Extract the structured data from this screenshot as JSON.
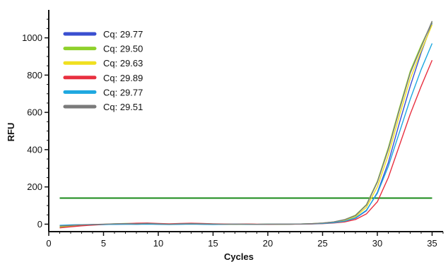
{
  "chart_data": {
    "type": "line",
    "xlabel": "Cycles",
    "ylabel": "RFU",
    "xlim": [
      0,
      36
    ],
    "ylim": [
      -40,
      1150
    ],
    "x_ticks": [
      0,
      5,
      10,
      15,
      20,
      25,
      30,
      35
    ],
    "y_ticks": [
      0,
      200,
      400,
      600,
      800,
      1000
    ],
    "grid": false,
    "legend_position": "top-left",
    "threshold": {
      "value": 140,
      "color": "#1a8a1a",
      "x_range": [
        1,
        35
      ]
    },
    "series": [
      {
        "name": "Cq: 29.77",
        "color": "#3a4fd0",
        "x": [
          1,
          2,
          3,
          4,
          5,
          6,
          7,
          8,
          9,
          10,
          11,
          12,
          13,
          14,
          15,
          16,
          17,
          18,
          19,
          20,
          21,
          22,
          23,
          24,
          25,
          26,
          27,
          28,
          29,
          30,
          31,
          32,
          33,
          34,
          35
        ],
        "values": [
          -8,
          -5,
          -3,
          -2,
          -2,
          -1,
          0,
          0,
          1,
          0,
          -1,
          0,
          1,
          0,
          -1,
          -1,
          0,
          0,
          -1,
          0,
          0,
          0,
          1,
          2,
          4,
          8,
          16,
          32,
          72,
          170,
          330,
          540,
          740,
          920,
          1080
        ]
      },
      {
        "name": "Cq: 29.50",
        "color": "#8fd12b",
        "x": [
          1,
          2,
          3,
          4,
          5,
          6,
          7,
          8,
          9,
          10,
          11,
          12,
          13,
          14,
          15,
          16,
          17,
          18,
          19,
          20,
          21,
          22,
          23,
          24,
          25,
          26,
          27,
          28,
          29,
          30,
          31,
          32,
          33,
          34,
          35
        ],
        "values": [
          -15,
          -10,
          -6,
          -3,
          -1,
          2,
          4,
          3,
          5,
          2,
          0,
          2,
          4,
          3,
          1,
          0,
          -1,
          0,
          -1,
          0,
          -1,
          0,
          1,
          3,
          6,
          12,
          24,
          48,
          105,
          230,
          410,
          620,
          820,
          960,
          1085
        ]
      },
      {
        "name": "Cq: 29.63",
        "color": "#f0e020",
        "x": [
          1,
          2,
          3,
          4,
          5,
          6,
          7,
          8,
          9,
          10,
          11,
          12,
          13,
          14,
          15,
          16,
          17,
          18,
          19,
          20,
          21,
          22,
          23,
          24,
          25,
          26,
          27,
          28,
          29,
          30,
          31,
          32,
          33,
          34,
          35
        ],
        "values": [
          -12,
          -8,
          -5,
          -3,
          -1,
          1,
          3,
          2,
          4,
          1,
          0,
          1,
          3,
          2,
          1,
          0,
          -1,
          0,
          -1,
          0,
          0,
          0,
          1,
          2,
          5,
          10,
          20,
          40,
          90,
          200,
          370,
          580,
          780,
          930,
          1070
        ]
      },
      {
        "name": "Cq: 29.89",
        "color": "#e83040",
        "x": [
          1,
          2,
          3,
          4,
          5,
          6,
          7,
          8,
          9,
          10,
          11,
          12,
          13,
          14,
          15,
          16,
          17,
          18,
          19,
          20,
          21,
          22,
          23,
          24,
          25,
          26,
          27,
          28,
          29,
          30,
          31,
          32,
          33,
          34,
          35
        ],
        "values": [
          -20,
          -14,
          -9,
          -5,
          -2,
          1,
          3,
          5,
          6,
          4,
          2,
          4,
          5,
          4,
          2,
          1,
          0,
          1,
          0,
          -1,
          0,
          0,
          0,
          1,
          3,
          6,
          12,
          25,
          55,
          120,
          250,
          420,
          590,
          740,
          880
        ]
      },
      {
        "name": "Cq: 29.77",
        "color": "#1ea8e0",
        "x": [
          1,
          2,
          3,
          4,
          5,
          6,
          7,
          8,
          9,
          10,
          11,
          12,
          13,
          14,
          15,
          16,
          17,
          18,
          19,
          20,
          21,
          22,
          23,
          24,
          25,
          26,
          27,
          28,
          29,
          30,
          31,
          32,
          33,
          34,
          35
        ],
        "values": [
          -6,
          -4,
          -3,
          -2,
          -2,
          -1,
          0,
          -1,
          0,
          -1,
          -2,
          -1,
          0,
          -1,
          -2,
          -1,
          0,
          -1,
          -1,
          0,
          0,
          0,
          1,
          2,
          4,
          8,
          16,
          34,
          75,
          165,
          310,
          490,
          670,
          830,
          970
        ]
      },
      {
        "name": "Cq: 29.51",
        "color": "#7a7a7a",
        "x": [
          1,
          2,
          3,
          4,
          5,
          6,
          7,
          8,
          9,
          10,
          11,
          12,
          13,
          14,
          15,
          16,
          17,
          18,
          19,
          20,
          21,
          22,
          23,
          24,
          25,
          26,
          27,
          28,
          29,
          30,
          31,
          32,
          33,
          34,
          35
        ],
        "values": [
          -10,
          -7,
          -4,
          -2,
          0,
          2,
          3,
          2,
          4,
          2,
          0,
          2,
          3,
          2,
          1,
          0,
          0,
          0,
          -1,
          0,
          0,
          0,
          1,
          3,
          6,
          12,
          24,
          46,
          102,
          225,
          400,
          610,
          810,
          950,
          1090
        ]
      }
    ]
  }
}
